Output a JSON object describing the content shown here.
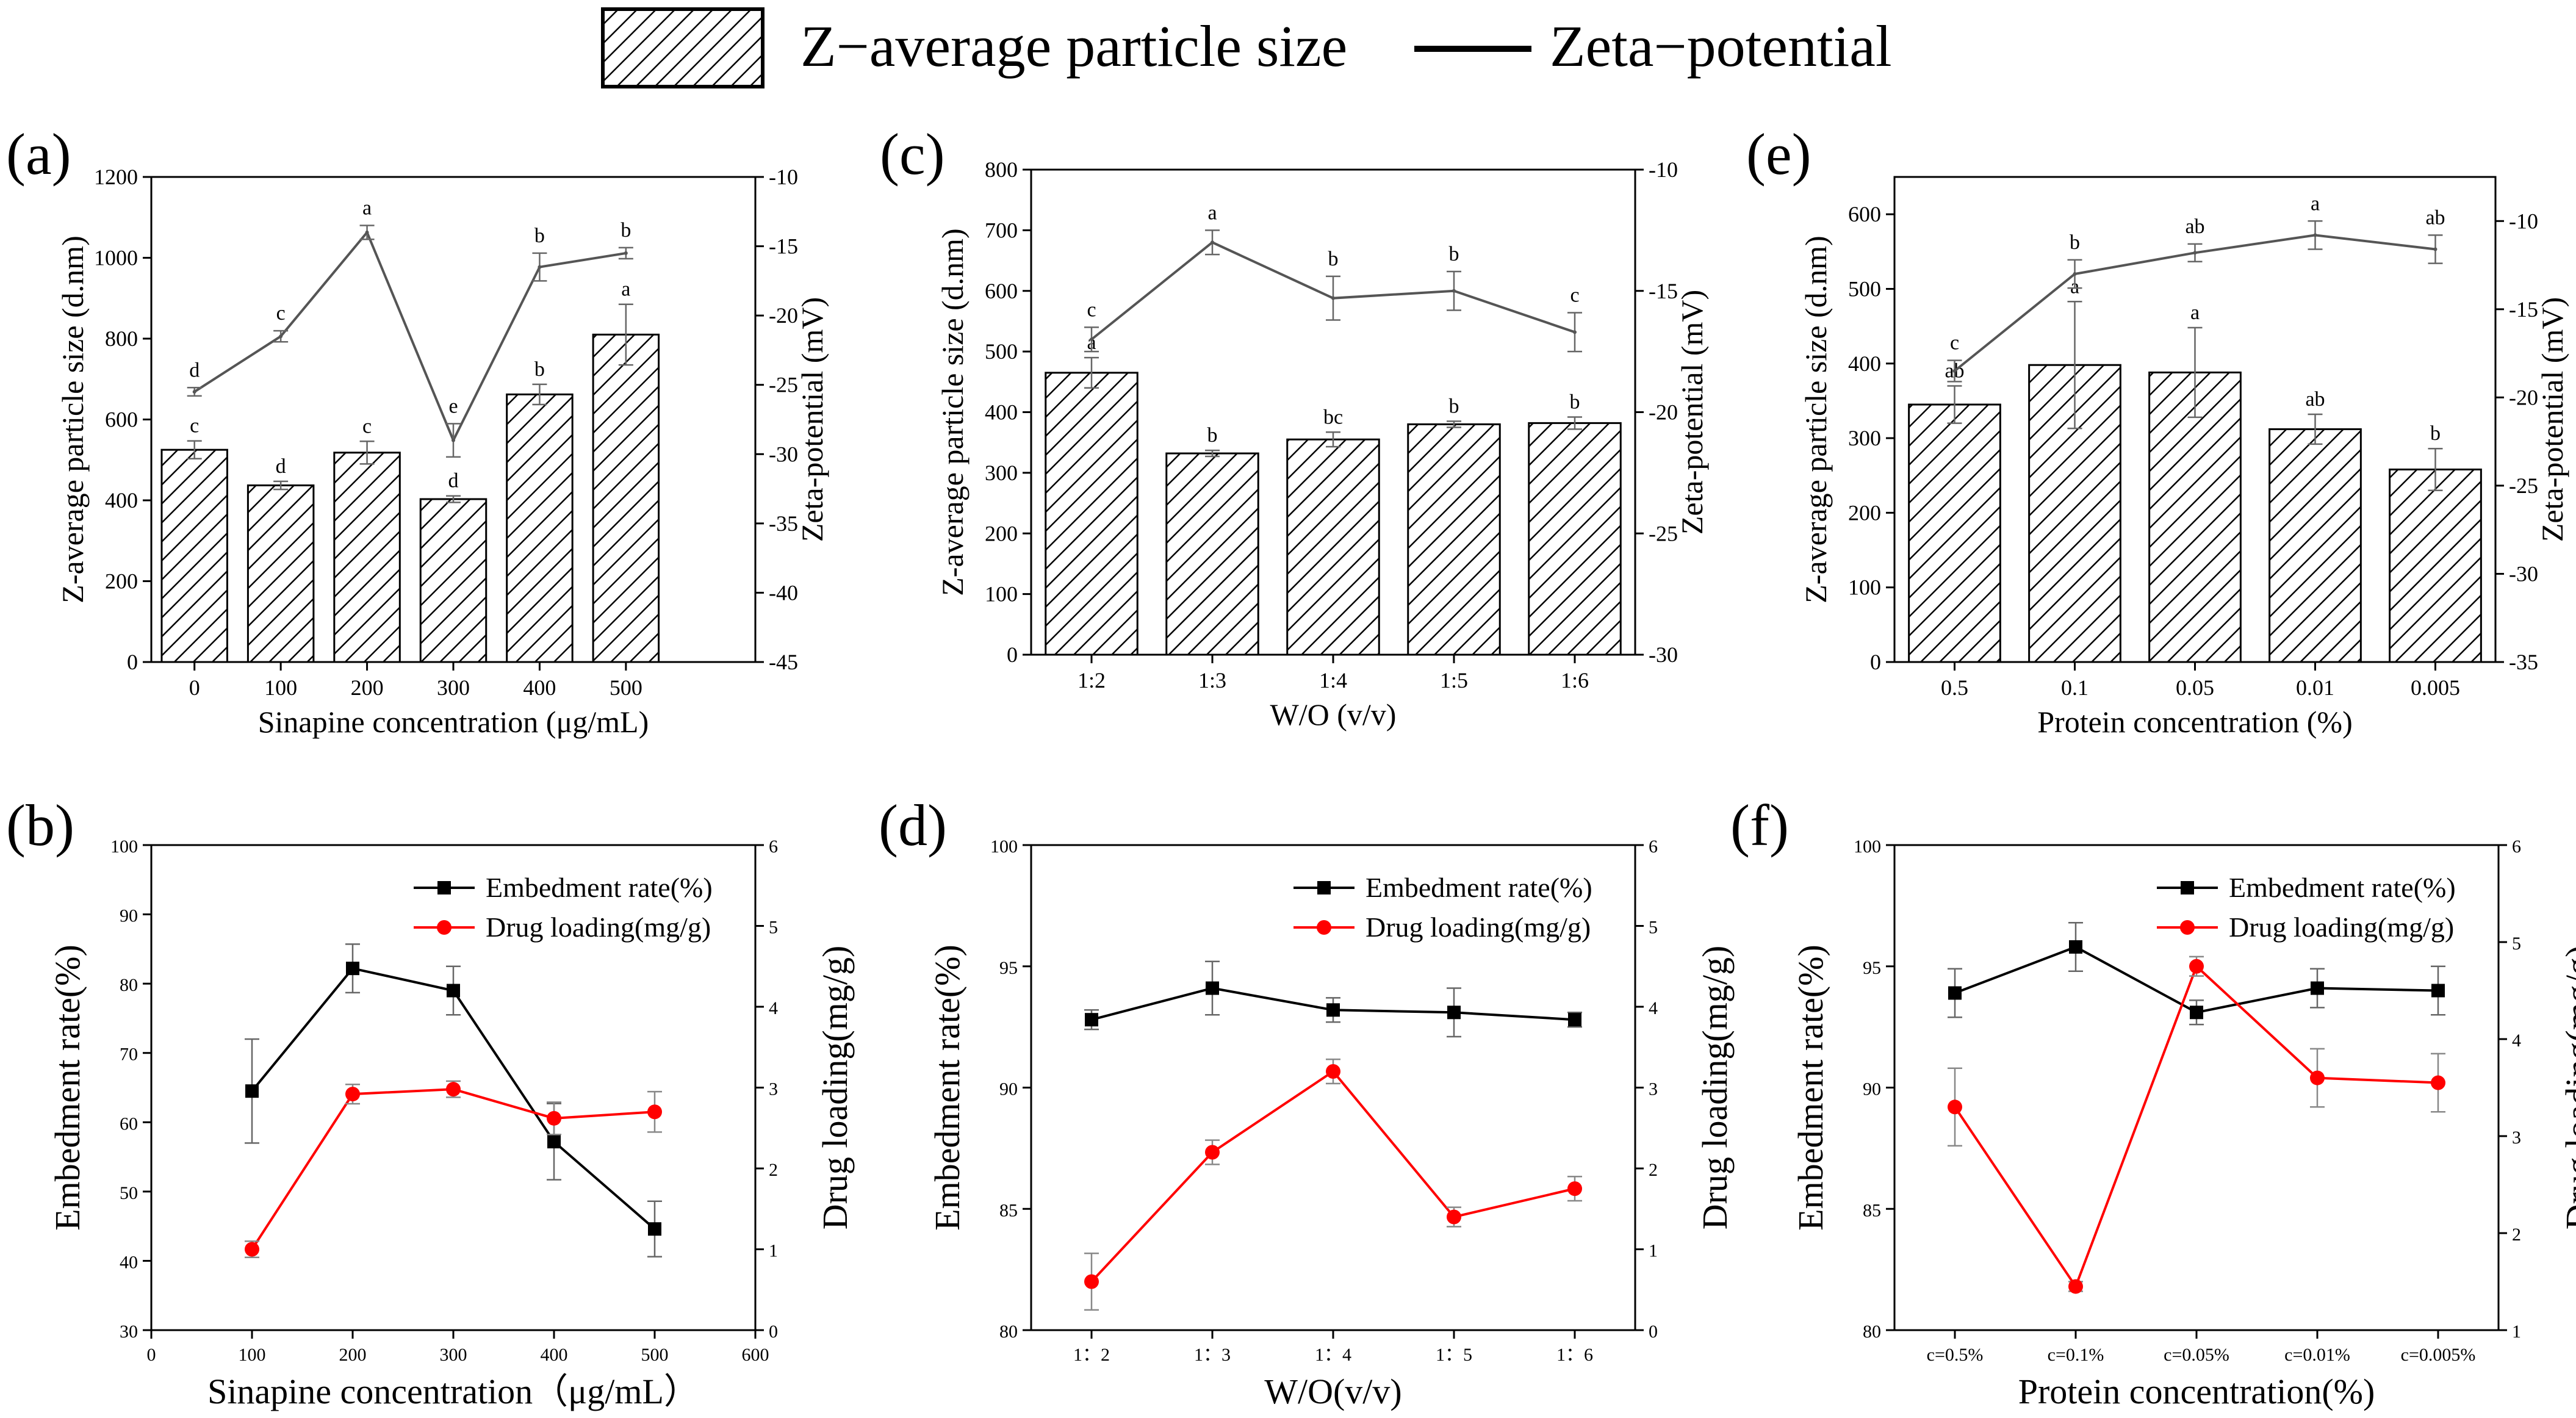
{
  "legend_top": {
    "bars": "Z−average particle size",
    "line": "Zeta−potential"
  },
  "colors": {
    "bar_fill": "#ffffff",
    "hatch": "#000000",
    "zeta_line": "#555555",
    "embed": "#000000",
    "drug": "#ff0000"
  },
  "chart_data": [
    {
      "id": "a",
      "type": "bar+line",
      "panel_label": "(a)",
      "categories": [
        "0",
        "100",
        "200",
        "300",
        "400",
        "500"
      ],
      "xlabel": "Sinapine concentration (μg/mL)",
      "ylabel": "Z-average particle size (d.nm)",
      "y2label": "Zeta-potential (mV)",
      "ylim": [
        0,
        1200
      ],
      "yticks": [
        0,
        200,
        400,
        600,
        800,
        1000,
        1200
      ],
      "y2lim": [
        -45,
        -10
      ],
      "y2ticks": [
        -45,
        -40,
        -35,
        -30,
        -25,
        -20,
        -15,
        -10
      ],
      "bars": {
        "values": [
          525,
          437,
          518,
          403,
          662,
          810
        ],
        "errors": [
          22,
          10,
          28,
          8,
          25,
          75
        ],
        "letters": [
          "c",
          "d",
          "c",
          "d",
          "b",
          "a"
        ]
      },
      "line": {
        "values": [
          -25.5,
          -21.5,
          -14.0,
          -29.0,
          -16.5,
          -15.5
        ],
        "errors": [
          0.3,
          0.4,
          0.5,
          1.2,
          1.0,
          0.4
        ],
        "letters": [
          "d",
          "c",
          "a",
          "e",
          "b",
          "b"
        ]
      }
    },
    {
      "id": "c",
      "type": "bar+line",
      "panel_label": "(c)",
      "categories": [
        "1:2",
        "1:3",
        "1:4",
        "1:5",
        "1:6"
      ],
      "xlabel": "W/O (v/v)",
      "ylabel": "Z-average particle size (d.nm)",
      "y2label": "Zeta-potential (mV)",
      "ylim": [
        0,
        800
      ],
      "yticks": [
        0,
        100,
        200,
        300,
        400,
        500,
        600,
        700,
        800
      ],
      "y2lim": [
        -30,
        -10
      ],
      "y2ticks": [
        -30,
        -25,
        -20,
        -15,
        -10
      ],
      "bars": {
        "values": [
          465,
          332,
          355,
          380,
          382
        ],
        "errors": [
          25,
          5,
          12,
          5,
          10
        ],
        "letters": [
          "a",
          "b",
          "bc",
          "b",
          "b"
        ]
      },
      "line": {
        "values": [
          -17.0,
          -13.0,
          -15.3,
          -15.0,
          -16.7
        ],
        "errors": [
          0.5,
          0.5,
          0.9,
          0.8,
          0.8
        ],
        "letters": [
          "c",
          "a",
          "b",
          "b",
          "c"
        ]
      }
    },
    {
      "id": "e",
      "type": "bar+line",
      "panel_label": "(e)",
      "categories": [
        "0.5",
        "0.1",
        "0.05",
        "0.01",
        "0.005"
      ],
      "xlabel": "Protein concentration (%)",
      "ylabel": "Z-average particle size (d.nm)",
      "y2label": "Zeta-potential (mV)",
      "ylim": [
        0,
        650
      ],
      "yticks": [
        0,
        100,
        200,
        300,
        400,
        500,
        600
      ],
      "y2lim": [
        -35,
        -7.5
      ],
      "y2ticks": [
        -35,
        -30,
        -25,
        -20,
        -15,
        -10
      ],
      "bars": {
        "values": [
          345,
          398,
          388,
          312,
          258
        ],
        "errors": [
          25,
          85,
          60,
          20,
          28
        ],
        "letters": [
          "ab",
          "a",
          "a",
          "ab",
          "b"
        ]
      },
      "line": {
        "values": [
          -18.5,
          -13.0,
          -11.8,
          -10.8,
          -11.6
        ],
        "errors": [
          0.6,
          0.8,
          0.5,
          0.8,
          0.8
        ],
        "letters": [
          "c",
          "b",
          "ab",
          "a",
          "ab"
        ]
      }
    },
    {
      "id": "b",
      "type": "line",
      "panel_label": "(b)",
      "x_numeric": true,
      "x": [
        100,
        200,
        300,
        400,
        500
      ],
      "xlim": [
        0,
        600
      ],
      "xticks": [
        0,
        100,
        200,
        300,
        400,
        500,
        600
      ],
      "xlabel": "Sinapine concentration（μg/mL）",
      "ylabel": "Embedment rate(%)",
      "y2label": "Drug loading(mg/g)",
      "ylim": [
        30,
        100
      ],
      "yticks": [
        30,
        40,
        50,
        60,
        70,
        80,
        90,
        100
      ],
      "y2lim": [
        0,
        6
      ],
      "y2ticks": [
        0,
        1,
        2,
        3,
        4,
        5,
        6
      ],
      "legend": [
        "Embedment rate(%)",
        "Drug loading(mg/g)"
      ],
      "embed": {
        "values": [
          64.5,
          82.2,
          79.0,
          57.2,
          44.6
        ],
        "errors": [
          7.5,
          3.5,
          3.5,
          5.5,
          4.0
        ]
      },
      "drug": {
        "values": [
          1.0,
          2.92,
          2.98,
          2.62,
          2.7
        ],
        "errors": [
          0.1,
          0.12,
          0.1,
          0.2,
          0.25
        ]
      }
    },
    {
      "id": "d",
      "type": "line",
      "panel_label": "(d)",
      "categories": [
        "1：2",
        "1：3",
        "1：4",
        "1：5",
        "1：6"
      ],
      "xlabel": "W/O(v/v)",
      "ylabel": "Embedment rate(%)",
      "y2label": "Drug loading(mg/g)",
      "ylim": [
        80,
        100
      ],
      "yticks": [
        80,
        85,
        90,
        95,
        100
      ],
      "y2lim": [
        0,
        6
      ],
      "y2ticks": [
        0,
        1,
        2,
        3,
        4,
        5,
        6
      ],
      "legend": [
        "Embedment rate(%)",
        "Drug loading(mg/g)"
      ],
      "embed": {
        "values": [
          92.8,
          94.1,
          93.2,
          93.1,
          92.8
        ],
        "errors": [
          0.4,
          1.1,
          0.5,
          1.0,
          0.3
        ]
      },
      "drug": {
        "values": [
          0.6,
          2.2,
          3.2,
          1.4,
          1.75
        ],
        "errors": [
          0.35,
          0.15,
          0.15,
          0.12,
          0.15
        ]
      }
    },
    {
      "id": "f",
      "type": "line",
      "panel_label": "(f)",
      "categories": [
        "c=0.5%",
        "c=0.1%",
        "c=0.05%",
        "c=0.01%",
        "c=0.005%"
      ],
      "xlabel": "Protein concentration(%)",
      "ylabel": "Embedment rate(%)",
      "y2label": "Drug loading(mg/g)",
      "ylim": [
        80,
        100
      ],
      "yticks": [
        80,
        85,
        90,
        95,
        100
      ],
      "y2lim": [
        1,
        6
      ],
      "y2ticks": [
        1,
        2,
        3,
        4,
        5,
        6
      ],
      "legend": [
        "Embedment rate(%)",
        "Drug loading(mg/g)"
      ],
      "embed": {
        "values": [
          93.9,
          95.8,
          93.1,
          94.1,
          94.0
        ],
        "errors": [
          1.0,
          1.0,
          0.5,
          0.8,
          1.0
        ]
      },
      "drug": {
        "values": [
          3.3,
          1.45,
          4.75,
          3.6,
          3.55
        ],
        "errors": [
          0.4,
          0.05,
          0.1,
          0.3,
          0.3
        ]
      }
    }
  ]
}
